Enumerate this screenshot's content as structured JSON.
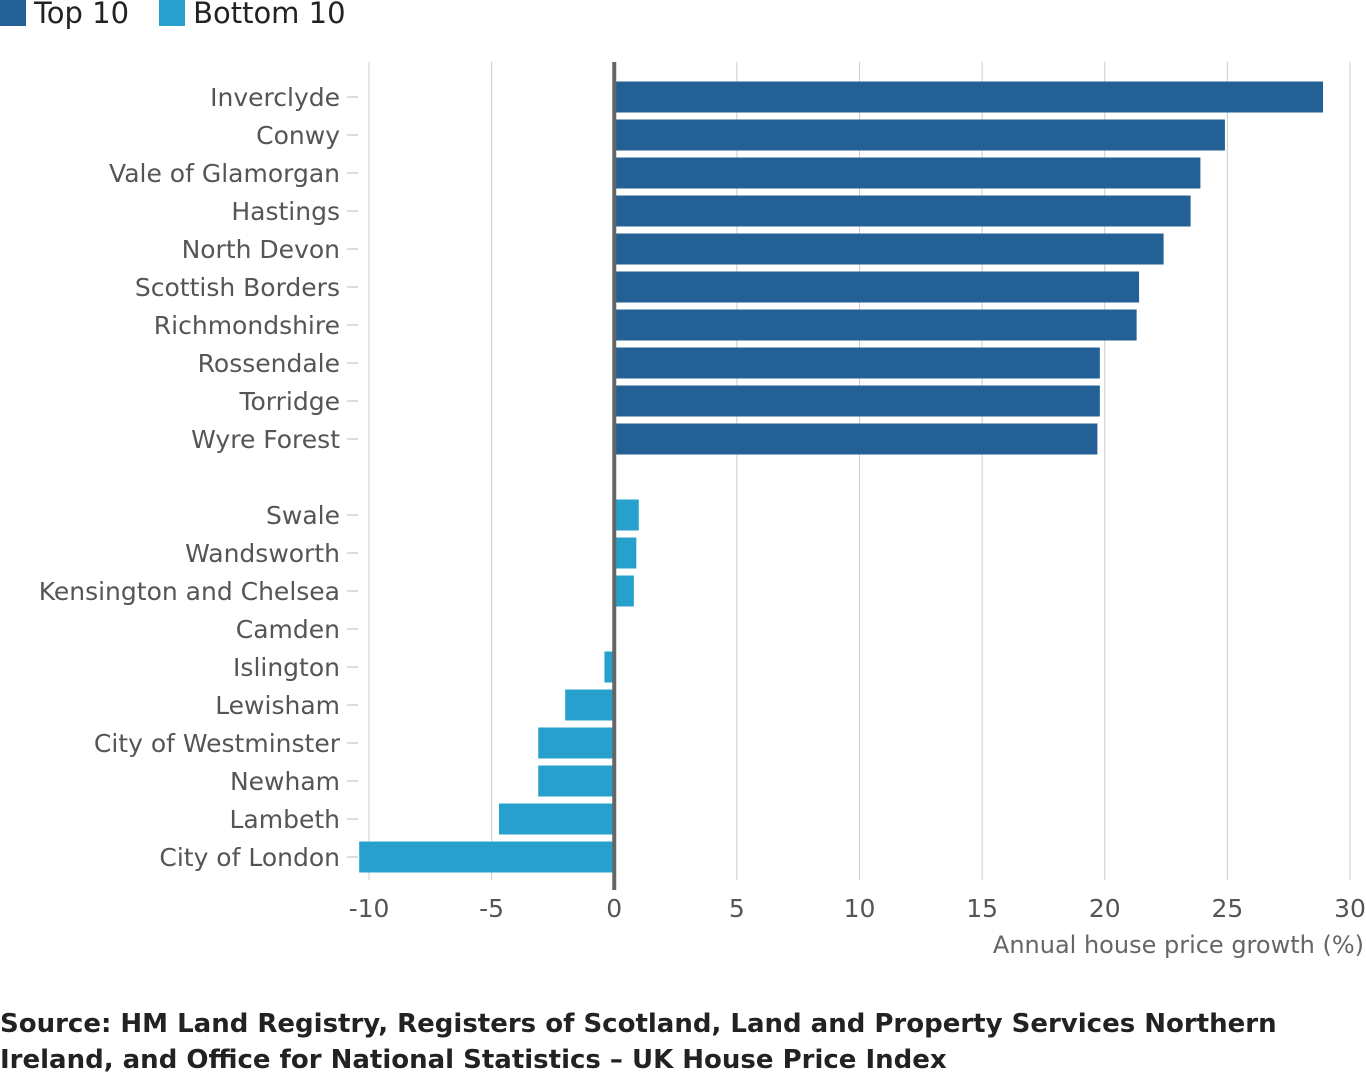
{
  "chart_data": {
    "type": "bar",
    "orientation": "horizontal",
    "categories": [
      "Inverclyde",
      "Conwy",
      "Vale of Glamorgan",
      "Hastings",
      "North Devon",
      "Scottish Borders",
      "Richmondshire",
      "Rossendale",
      "Torridge",
      "Wyre Forest",
      "",
      "Swale",
      "Wandsworth",
      "Kensington and Chelsea",
      "Camden",
      "Islington",
      "Lewisham",
      "City of Westminster",
      "Newham",
      "Lambeth",
      "City of London"
    ],
    "series": [
      {
        "name": "Top 10",
        "color": "#236095",
        "values": [
          28.9,
          24.9,
          23.9,
          23.5,
          22.4,
          21.4,
          21.3,
          19.8,
          19.8,
          19.7,
          null,
          null,
          null,
          null,
          null,
          null,
          null,
          null,
          null,
          null,
          null
        ]
      },
      {
        "name": "Bottom 10",
        "color": "#28a0cd",
        "values": [
          null,
          null,
          null,
          null,
          null,
          null,
          null,
          null,
          null,
          null,
          null,
          1.0,
          0.9,
          0.8,
          0.0,
          -0.4,
          -2.0,
          -3.1,
          -3.1,
          -4.7,
          -10.4
        ]
      }
    ],
    "xlim": [
      -10,
      30
    ],
    "xticks": [
      "-10",
      "-5",
      "0",
      "5",
      "10",
      "15",
      "20",
      "25",
      "30"
    ],
    "xlabel": "Annual house price growth (%)",
    "grid": true,
    "legend_position": "top-left"
  },
  "source": "Source: HM Land Registry, Registers of Scotland, Land and Property Services Northern Ireland, and Office for National Statistics – UK House Price Index"
}
